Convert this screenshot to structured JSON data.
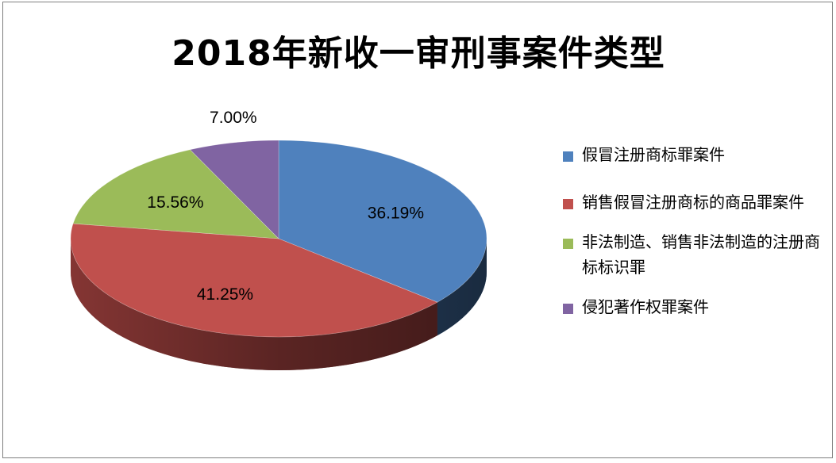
{
  "chart_data": {
    "type": "pie",
    "title": "2018年新收一审刑事案件类型",
    "slices": [
      {
        "label": "假冒注册商标罪案件",
        "value": 36.19,
        "display": "36.19%",
        "color": "#4f81bd",
        "dark": "#1f3653"
      },
      {
        "label": "销售假冒注册商标的商品罪案件",
        "value": 41.25,
        "display": "41.25%",
        "color": "#c0504d",
        "dark": "#4c1c1b"
      },
      {
        "label": "非法制造、销售非法制造的注册商标标识罪",
        "value": 15.56,
        "display": "15.56%",
        "color": "#9bbb59",
        "dark": "#4c5e2a"
      },
      {
        "label": "侵犯著作权罪案件",
        "value": 7.0,
        "display": "7.00%",
        "color": "#8064a2",
        "dark": "#3e2f52"
      }
    ],
    "legend_position": "right",
    "style": "3d-pie"
  }
}
